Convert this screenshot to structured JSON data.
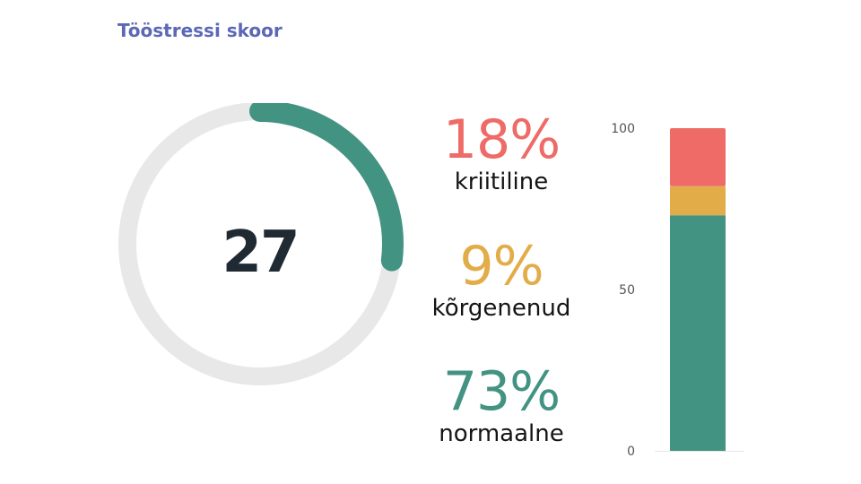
{
  "page": {
    "title": "Tööstressi skoor"
  },
  "gauge": {
    "value": "27",
    "fraction": 0.27,
    "track_color": "#e8e8e8",
    "fill_color": "#439383",
    "text_color": "#1f2a33"
  },
  "stats": [
    {
      "percent": "18%",
      "label": "kriitiline",
      "color": "#ee6b67"
    },
    {
      "percent": "9%",
      "label": "kõrgenenud",
      "color": "#e2ac48"
    },
    {
      "percent": "73%",
      "label": "normaalne",
      "color": "#439383"
    }
  ],
  "chart_data": {
    "type": "bar",
    "stacked": true,
    "categories": [
      ""
    ],
    "series": [
      {
        "name": "normaalne",
        "values": [
          73
        ],
        "color": "#439383"
      },
      {
        "name": "kõrgenenud",
        "values": [
          9
        ],
        "color": "#e2ac48"
      },
      {
        "name": "kriitiline",
        "values": [
          18
        ],
        "color": "#ee6b67"
      }
    ],
    "ylim": [
      0,
      100
    ],
    "yticks": [
      "0",
      "50",
      "100"
    ],
    "grid": false,
    "legend": "none",
    "xlabel": "",
    "ylabel": ""
  }
}
